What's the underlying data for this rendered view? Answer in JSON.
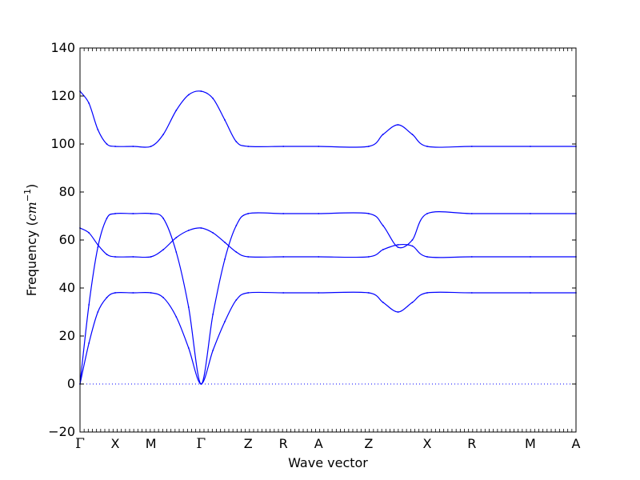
{
  "chart_data": {
    "type": "line",
    "title": "",
    "xlabel": "Wave vector",
    "ylabel_main": "Frequency (",
    "ylabel_unit": "cm",
    "ylabel_exp": "−1",
    "ylabel_close": ")",
    "ylim": [
      -20,
      140
    ],
    "xlim": [
      0,
      1
    ],
    "grid": false,
    "line_color": "#0000ff",
    "y_ticks": [
      -20,
      0,
      20,
      40,
      60,
      80,
      100,
      120,
      140
    ],
    "y_tick_labels": [
      "−20",
      "0",
      "20",
      "40",
      "60",
      "80",
      "100",
      "120",
      "140"
    ],
    "x_ticks": [
      {
        "label": "Γ",
        "x": 0.0
      },
      {
        "label": "X",
        "x": 0.071
      },
      {
        "label": "M",
        "x": 0.143
      },
      {
        "label": "Γ",
        "x": 0.244
      },
      {
        "label": "Z",
        "x": 0.339
      },
      {
        "label": "R",
        "x": 0.41
      },
      {
        "label": "A",
        "x": 0.481
      },
      {
        "label": "Z",
        "x": 0.582
      },
      {
        "label": "X",
        "x": 0.7
      },
      {
        "label": "R",
        "x": 0.79
      },
      {
        "label": "M",
        "x": 0.908
      },
      {
        "label": "A",
        "x": 1.0
      }
    ],
    "zero_line": {
      "y": 0,
      "style": "dotted"
    },
    "series": [
      {
        "x": [
          0.0,
          0.018,
          0.036,
          0.054,
          0.071,
          0.107,
          0.143,
          0.168,
          0.194,
          0.219,
          0.244,
          0.268,
          0.292,
          0.315,
          0.339,
          0.41,
          0.481,
          0.582,
          0.611,
          0.641,
          0.67,
          0.7,
          0.79,
          0.908,
          1.0
        ],
        "values": [
          122,
          117,
          106,
          100,
          99,
          99,
          99,
          104,
          114,
          120.5,
          122,
          119,
          110,
          101,
          99,
          99,
          99,
          99,
          104,
          108,
          104,
          99,
          99,
          99,
          99
        ]
      },
      {
        "x": [
          0.0,
          0.018,
          0.036,
          0.054,
          0.071,
          0.107,
          0.143,
          0.168,
          0.194,
          0.219,
          0.244,
          0.268,
          0.292,
          0.315,
          0.339,
          0.41,
          0.481,
          0.582,
          0.611,
          0.641,
          0.67,
          0.7,
          0.79,
          0.908,
          1.0
        ],
        "values": [
          0,
          33,
          57,
          69,
          71,
          71,
          71,
          69,
          55,
          32,
          0,
          29,
          52,
          66,
          71,
          71,
          71,
          71,
          66,
          57,
          60,
          71,
          71,
          71,
          71
        ]
      },
      {
        "x": [
          0.0,
          0.018,
          0.036,
          0.054,
          0.071,
          0.107,
          0.143,
          0.168,
          0.194,
          0.219,
          0.244,
          0.268,
          0.292,
          0.315,
          0.339,
          0.41,
          0.481,
          0.582,
          0.611,
          0.641,
          0.67,
          0.7,
          0.79,
          0.908,
          1.0
        ],
        "values": [
          65,
          63,
          58,
          54,
          53,
          53,
          53,
          56,
          61,
          64,
          65,
          63,
          59,
          55,
          53,
          53,
          53,
          53,
          56,
          58,
          57.5,
          53,
          53,
          53,
          53
        ]
      },
      {
        "x": [
          0.0,
          0.018,
          0.036,
          0.054,
          0.071,
          0.107,
          0.143,
          0.168,
          0.194,
          0.219,
          0.244,
          0.268,
          0.292,
          0.315,
          0.339,
          0.41,
          0.481,
          0.582,
          0.611,
          0.641,
          0.67,
          0.7,
          0.79,
          0.908,
          1.0
        ],
        "values": [
          0,
          17,
          30,
          36,
          38,
          38,
          38,
          36,
          28,
          15,
          0,
          14,
          26,
          35,
          38,
          38,
          38,
          38,
          34,
          30,
          34,
          38,
          38,
          38,
          38
        ]
      }
    ]
  }
}
